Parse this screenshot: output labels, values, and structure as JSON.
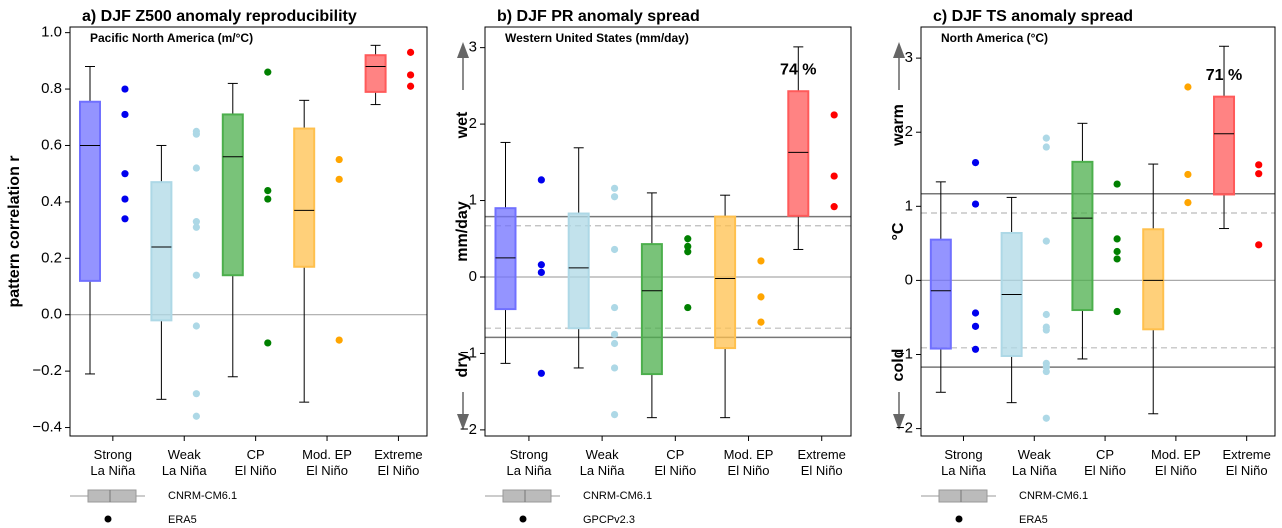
{
  "chart_data": [
    {
      "type": "box",
      "title": "a) DJF Z500 anomaly reproducibility",
      "subtitle": "Pacific North America (m/°C)",
      "ylabel": "pattern correlation r",
      "categories": [
        [
          "Strong",
          "La Niña"
        ],
        [
          "Weak",
          "La Niña"
        ],
        [
          "CP",
          "El Niño"
        ],
        [
          "Mod. EP",
          "El Niño"
        ],
        [
          "Extreme",
          "El Niño"
        ]
      ],
      "boxes": [
        {
          "whislo": -0.21,
          "q1": 0.12,
          "med": 0.6,
          "q3": 0.755,
          "whishi": 0.88,
          "color": "#7070ff",
          "point_color": "#0000ee",
          "points": [
            0.8,
            0.71,
            0.5,
            0.41,
            0.34
          ]
        },
        {
          "whislo": -0.3,
          "q1": -0.02,
          "med": 0.24,
          "q3": 0.47,
          "whishi": 0.6,
          "color": "#add8e6",
          "point_color": "#add8e6",
          "points": [
            0.65,
            0.64,
            0.52,
            0.33,
            0.31,
            0.14,
            -0.04,
            -0.28,
            -0.36
          ]
        },
        {
          "whislo": -0.22,
          "q1": 0.14,
          "med": 0.56,
          "q3": 0.71,
          "whishi": 0.82,
          "color": "#4caf4c",
          "point_color": "#008000",
          "points": [
            0.86,
            0.44,
            0.41,
            -0.1
          ]
        },
        {
          "whislo": -0.31,
          "q1": 0.17,
          "med": 0.37,
          "q3": 0.66,
          "whishi": 0.76,
          "color": "#ffc04d",
          "point_color": "#ffa500",
          "points": [
            0.55,
            0.48,
            -0.09
          ]
        },
        {
          "whislo": 0.745,
          "q1": 0.79,
          "med": 0.88,
          "q3": 0.92,
          "whishi": 0.955,
          "color": "#ff5a5a",
          "point_color": "#ff0000",
          "points": [
            0.93,
            0.85,
            0.81
          ]
        }
      ],
      "ylim": [
        -0.43,
        1.02
      ],
      "yticks": [
        {
          "value": -0.4,
          "label": "−0.4"
        },
        {
          "value": -0.2,
          "label": "−0.2"
        },
        {
          "value": 0,
          "label": "0.0"
        },
        {
          "value": 0.2,
          "label": "0.2"
        },
        {
          "value": 0.4,
          "label": "0.4"
        },
        {
          "value": 0.6,
          "label": "0.6"
        },
        {
          "value": 0.8,
          "label": "0.8"
        },
        {
          "value": 1,
          "label": "1.0"
        }
      ],
      "hlines": [
        {
          "value": 0,
          "style": "zero"
        }
      ],
      "legend": [
        "CNRM-CM6.1",
        "ERA5"
      ]
    },
    {
      "type": "box",
      "title": "b) DJF PR anomaly spread",
      "subtitle": "Western United States (mm/day)",
      "ylabel": "mm/day",
      "side_labels": [
        "wet",
        "dry"
      ],
      "categories": [
        [
          "Strong",
          "La Niña"
        ],
        [
          "Weak",
          "La Niña"
        ],
        [
          "CP",
          "El Niño"
        ],
        [
          "Mod. EP",
          "El Niño"
        ],
        [
          "Extreme",
          "El Niño"
        ]
      ],
      "boxes": [
        {
          "whislo": -1.13,
          "q1": -0.42,
          "med": 0.25,
          "q3": 0.9,
          "whishi": 1.76,
          "color": "#7070ff",
          "point_color": "#0000ee",
          "points": [
            1.27,
            0.16,
            0.06,
            -1.26
          ]
        },
        {
          "whislo": -1.19,
          "q1": -0.67,
          "med": 0.12,
          "q3": 0.83,
          "whishi": 1.69,
          "color": "#add8e6",
          "point_color": "#add8e6",
          "points": [
            1.16,
            1.05,
            0.36,
            -0.4,
            -0.75,
            -0.87,
            -1.19,
            -1.8
          ]
        },
        {
          "whislo": -1.84,
          "q1": -1.27,
          "med": -0.18,
          "q3": 0.43,
          "whishi": 1.1,
          "color": "#4caf4c",
          "point_color": "#008000",
          "points": [
            0.5,
            0.4,
            0.33,
            -0.4
          ]
        },
        {
          "whislo": -1.84,
          "q1": -0.93,
          "med": -0.02,
          "q3": 0.79,
          "whishi": 1.07,
          "color": "#ffc04d",
          "point_color": "#ffa500",
          "points": [
            0.21,
            -0.26,
            -0.59
          ]
        },
        {
          "whislo": 0.36,
          "q1": 0.8,
          "med": 1.63,
          "q3": 2.43,
          "whishi": 3.01,
          "color": "#ff5a5a",
          "point_color": "#ff0000",
          "points": [
            2.12,
            1.32,
            0.92
          ],
          "annotation": "74 %"
        }
      ],
      "ylim": [
        -2.08,
        3.27
      ],
      "yticks": [
        {
          "value": -2,
          "label": "−2"
        },
        {
          "value": -1,
          "label": "−1"
        },
        0,
        1,
        2,
        3
      ],
      "hlines": [
        {
          "value": 0,
          "style": "zero"
        },
        {
          "value": 0.79,
          "style": "solid"
        },
        {
          "value": -0.79,
          "style": "solid"
        },
        {
          "value": 0.67,
          "style": "dashed"
        },
        {
          "value": -0.67,
          "style": "dashed"
        }
      ],
      "legend": [
        "CNRM-CM6.1",
        "GPCPv2.3"
      ]
    },
    {
      "type": "box",
      "title": "c) DJF TS anomaly spread",
      "subtitle": "North America (°C)",
      "ylabel": "°C",
      "side_labels": [
        "warm",
        "cold"
      ],
      "categories": [
        [
          "Strong",
          "La Niña"
        ],
        [
          "Weak",
          "La Niña"
        ],
        [
          "CP",
          "El Niño"
        ],
        [
          "Mod. EP",
          "El Niño"
        ],
        [
          "Extreme",
          "El Niño"
        ]
      ],
      "boxes": [
        {
          "whislo": -1.51,
          "q1": -0.92,
          "med": -0.14,
          "q3": 0.55,
          "whishi": 1.33,
          "color": "#7070ff",
          "point_color": "#0000ee",
          "points": [
            1.59,
            1.03,
            -0.44,
            -0.62,
            -0.93
          ]
        },
        {
          "whislo": -1.65,
          "q1": -1.02,
          "med": -0.19,
          "q3": 0.64,
          "whishi": 1.12,
          "color": "#add8e6",
          "point_color": "#add8e6",
          "points": [
            1.92,
            1.8,
            0.53,
            -0.46,
            -0.63,
            -0.67,
            -1.12,
            -1.17,
            -1.23,
            -1.86
          ]
        },
        {
          "whislo": -1.06,
          "q1": -0.4,
          "med": 0.84,
          "q3": 1.6,
          "whishi": 2.12,
          "color": "#4caf4c",
          "point_color": "#008000",
          "points": [
            1.3,
            0.56,
            0.39,
            0.29,
            -0.42
          ]
        },
        {
          "whislo": -1.8,
          "q1": -0.66,
          "med": 0,
          "q3": 0.69,
          "whishi": 1.57,
          "color": "#ffc04d",
          "point_color": "#ffa500",
          "points": [
            2.61,
            1.43,
            1.05
          ]
        },
        {
          "whislo": 0.7,
          "q1": 1.16,
          "med": 1.98,
          "q3": 2.48,
          "whishi": 3.16,
          "color": "#ff5a5a",
          "point_color": "#ff0000",
          "points": [
            1.56,
            1.44,
            0.48
          ],
          "annotation": "71 %"
        }
      ],
      "ylim": [
        -2.1,
        3.42
      ],
      "yticks": [
        {
          "value": -2,
          "label": "−2"
        },
        {
          "value": -1,
          "label": "−1"
        },
        0,
        1,
        2,
        3
      ],
      "hlines": [
        {
          "value": 0,
          "style": "zero"
        },
        {
          "value": 1.17,
          "style": "solid"
        },
        {
          "value": -1.17,
          "style": "solid"
        },
        {
          "value": 0.91,
          "style": "dashed"
        },
        {
          "value": -0.91,
          "style": "dashed"
        }
      ],
      "legend": [
        "CNRM-CM6.1",
        "ERA5"
      ]
    }
  ]
}
